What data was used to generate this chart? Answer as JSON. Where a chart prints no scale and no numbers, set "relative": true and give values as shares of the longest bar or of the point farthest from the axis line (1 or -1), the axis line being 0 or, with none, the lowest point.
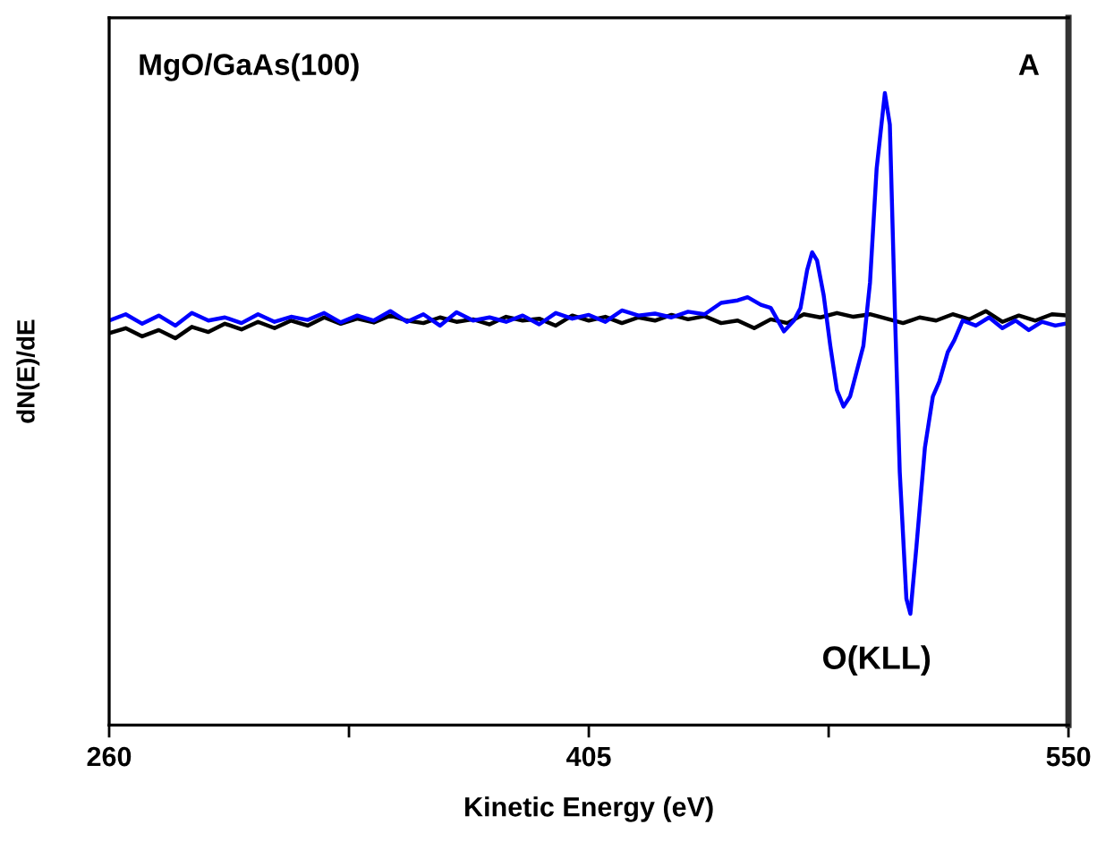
{
  "chart_data": {
    "type": "line",
    "relative": true,
    "xlabel": "Kinetic Energy (eV)",
    "ylabel": "dN(E)/dE",
    "annotations": [
      "MgO/GaAs(100)",
      "A",
      "O(KLL)"
    ],
    "xlim": [
      260,
      550
    ],
    "xticks": [
      260,
      {
        "value": 332.5,
        "label": null
      },
      405,
      {
        "value": 477.5,
        "label": null
      },
      550
    ],
    "grid": false,
    "legend": false,
    "marker": "none",
    "line_style": "solid",
    "series": [
      {
        "color": "#000000",
        "x": [
          260,
          265,
          270,
          275,
          280,
          285,
          290,
          295,
          300,
          305,
          310,
          315,
          320,
          325,
          330,
          335,
          340,
          345,
          350,
          355,
          360,
          365,
          370,
          375,
          380,
          385,
          390,
          395,
          400,
          405,
          410,
          415,
          420,
          425,
          430,
          435,
          440,
          445,
          450,
          455,
          460,
          465,
          470,
          475,
          480,
          485,
          490,
          495,
          500,
          505,
          510,
          515,
          520,
          525,
          530,
          535,
          540,
          545,
          550
        ],
        "values": [
          0.62,
          0.628,
          0.615,
          0.625,
          0.612,
          0.63,
          0.622,
          0.635,
          0.626,
          0.638,
          0.628,
          0.64,
          0.632,
          0.645,
          0.635,
          0.643,
          0.637,
          0.648,
          0.64,
          0.636,
          0.645,
          0.638,
          0.642,
          0.634,
          0.646,
          0.64,
          0.643,
          0.632,
          0.648,
          0.64,
          0.646,
          0.636,
          0.645,
          0.64,
          0.649,
          0.642,
          0.647,
          0.636,
          0.64,
          0.628,
          0.642,
          0.636,
          0.65,
          0.645,
          0.652,
          0.646,
          0.65,
          0.643,
          0.636,
          0.645,
          0.64,
          0.65,
          0.642,
          0.655,
          0.638,
          0.648,
          0.64,
          0.65,
          0.648
        ]
      },
      {
        "color": "#0000ff",
        "x": [
          260,
          265,
          270,
          275,
          280,
          285,
          290,
          295,
          300,
          305,
          310,
          315,
          320,
          325,
          330,
          335,
          340,
          345,
          350,
          355,
          360,
          365,
          370,
          375,
          380,
          385,
          390,
          395,
          400,
          405,
          410,
          415,
          420,
          425,
          430,
          435,
          440,
          445,
          450,
          453,
          457,
          460,
          464,
          467,
          469,
          471,
          472.5,
          474,
          476,
          478,
          480,
          482,
          484,
          486,
          488,
          490,
          492,
          494.5,
          496,
          497.6,
          499,
          501,
          502.2,
          504,
          506.6,
          509,
          511,
          513.5,
          515.5,
          518,
          522,
          526,
          530,
          534,
          538,
          542,
          546,
          550
        ],
        "values": [
          0.64,
          0.65,
          0.635,
          0.648,
          0.632,
          0.652,
          0.64,
          0.645,
          0.636,
          0.65,
          0.638,
          0.646,
          0.641,
          0.652,
          0.637,
          0.648,
          0.64,
          0.655,
          0.638,
          0.65,
          0.632,
          0.653,
          0.64,
          0.645,
          0.638,
          0.648,
          0.634,
          0.652,
          0.643,
          0.649,
          0.638,
          0.656,
          0.648,
          0.651,
          0.645,
          0.654,
          0.65,
          0.668,
          0.672,
          0.677,
          0.665,
          0.66,
          0.623,
          0.64,
          0.66,
          0.72,
          0.748,
          0.735,
          0.68,
          0.6,
          0.53,
          0.504,
          0.52,
          0.56,
          0.6,
          0.7,
          0.88,
          1.0,
          0.95,
          0.64,
          0.4,
          0.2,
          0.176,
          0.28,
          0.439,
          0.52,
          0.544,
          0.59,
          0.609,
          0.64,
          0.632,
          0.645,
          0.628,
          0.64,
          0.625,
          0.638,
          0.632,
          0.636
        ]
      }
    ]
  }
}
